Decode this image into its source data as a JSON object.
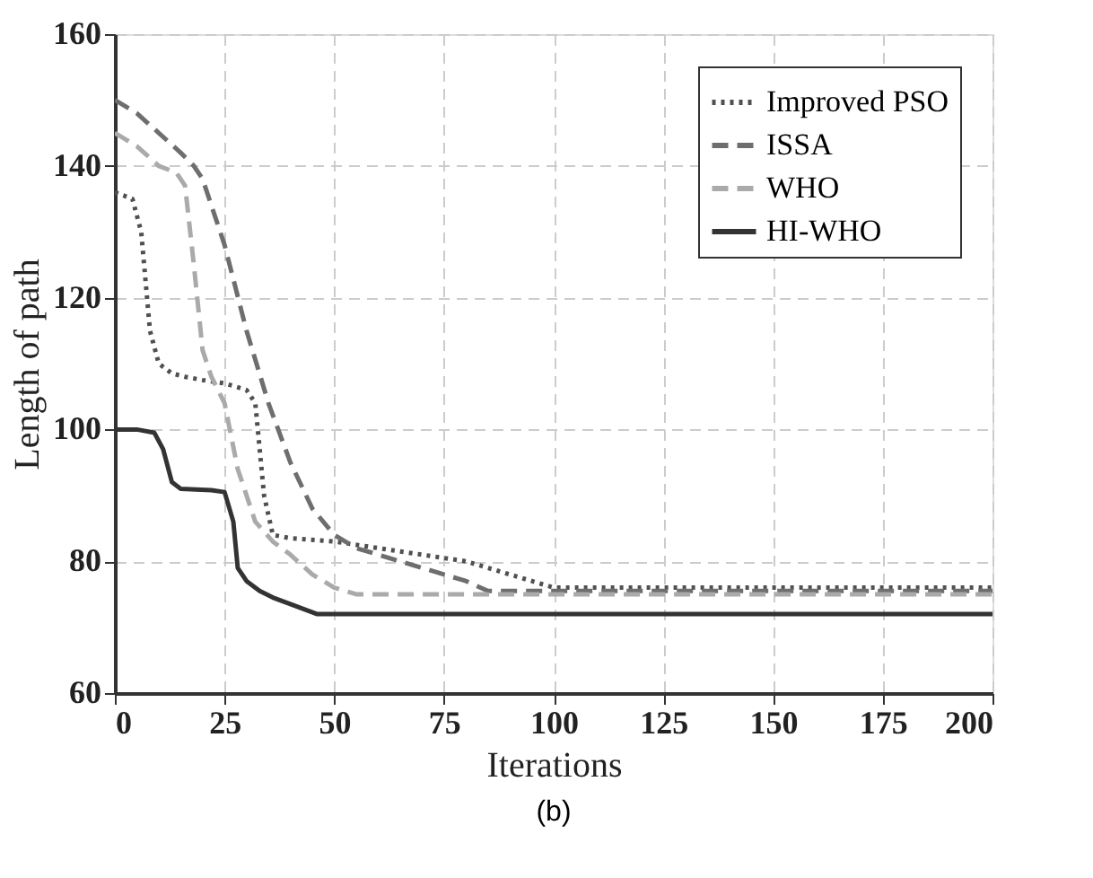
{
  "chart_data": {
    "type": "line",
    "xlabel": "Iterations",
    "ylabel": "Length of path",
    "xlim": [
      0,
      200
    ],
    "ylim": [
      60,
      160
    ],
    "xticks": [
      0,
      25,
      50,
      75,
      100,
      125,
      150,
      175,
      200
    ],
    "yticks": [
      60,
      80,
      100,
      120,
      140,
      160
    ],
    "grid": true,
    "legend": "top right",
    "annotations": [
      "(b)"
    ],
    "series": [
      {
        "name": "Improved PSO",
        "color": "#505050",
        "line_style": "dotted",
        "x": [
          0,
          4,
          6,
          8,
          10,
          13,
          16,
          20,
          25,
          30,
          32,
          34,
          36,
          40,
          50,
          60,
          70,
          80,
          90,
          95,
          100,
          150,
          200
        ],
        "values": [
          136,
          135,
          130,
          115,
          110,
          108.5,
          108,
          107.5,
          107,
          106,
          104,
          90,
          84,
          83.5,
          83,
          82,
          81,
          80,
          78,
          77,
          76,
          76,
          76
        ]
      },
      {
        "name": "ISSA",
        "color": "#6e6e6e",
        "line_style": "dashed",
        "x": [
          0,
          5,
          10,
          15,
          18,
          20,
          25,
          30,
          35,
          40,
          45,
          50,
          55,
          60,
          70,
          80,
          85,
          90,
          100,
          150,
          200
        ],
        "values": [
          150,
          148,
          145,
          142,
          140,
          138,
          128,
          115,
          104,
          95,
          88,
          84,
          82,
          81,
          79,
          77,
          75.5,
          75.5,
          75.5,
          75.5,
          75.5
        ]
      },
      {
        "name": "WHO",
        "color": "#aaaaaa",
        "line_style": "dashed",
        "x": [
          0,
          5,
          10,
          14,
          16,
          18,
          20,
          22,
          25,
          28,
          32,
          36,
          40,
          45,
          50,
          55,
          100,
          150,
          200
        ],
        "values": [
          145,
          143,
          140,
          139,
          137,
          125,
          112,
          108,
          104,
          94,
          86,
          83,
          81,
          78,
          76,
          75,
          75,
          75,
          75
        ]
      },
      {
        "name": "HI-WHO",
        "color": "#333333",
        "line_style": "solid",
        "x": [
          0,
          5,
          9,
          11,
          13,
          15,
          22,
          25,
          27,
          28,
          30,
          33,
          36,
          40,
          46,
          50,
          100,
          150,
          200
        ],
        "values": [
          100,
          100,
          99.5,
          97,
          92,
          91,
          90.8,
          90.5,
          86,
          79,
          77,
          75.5,
          74.5,
          73.5,
          72,
          72,
          72,
          72,
          72
        ]
      }
    ]
  }
}
